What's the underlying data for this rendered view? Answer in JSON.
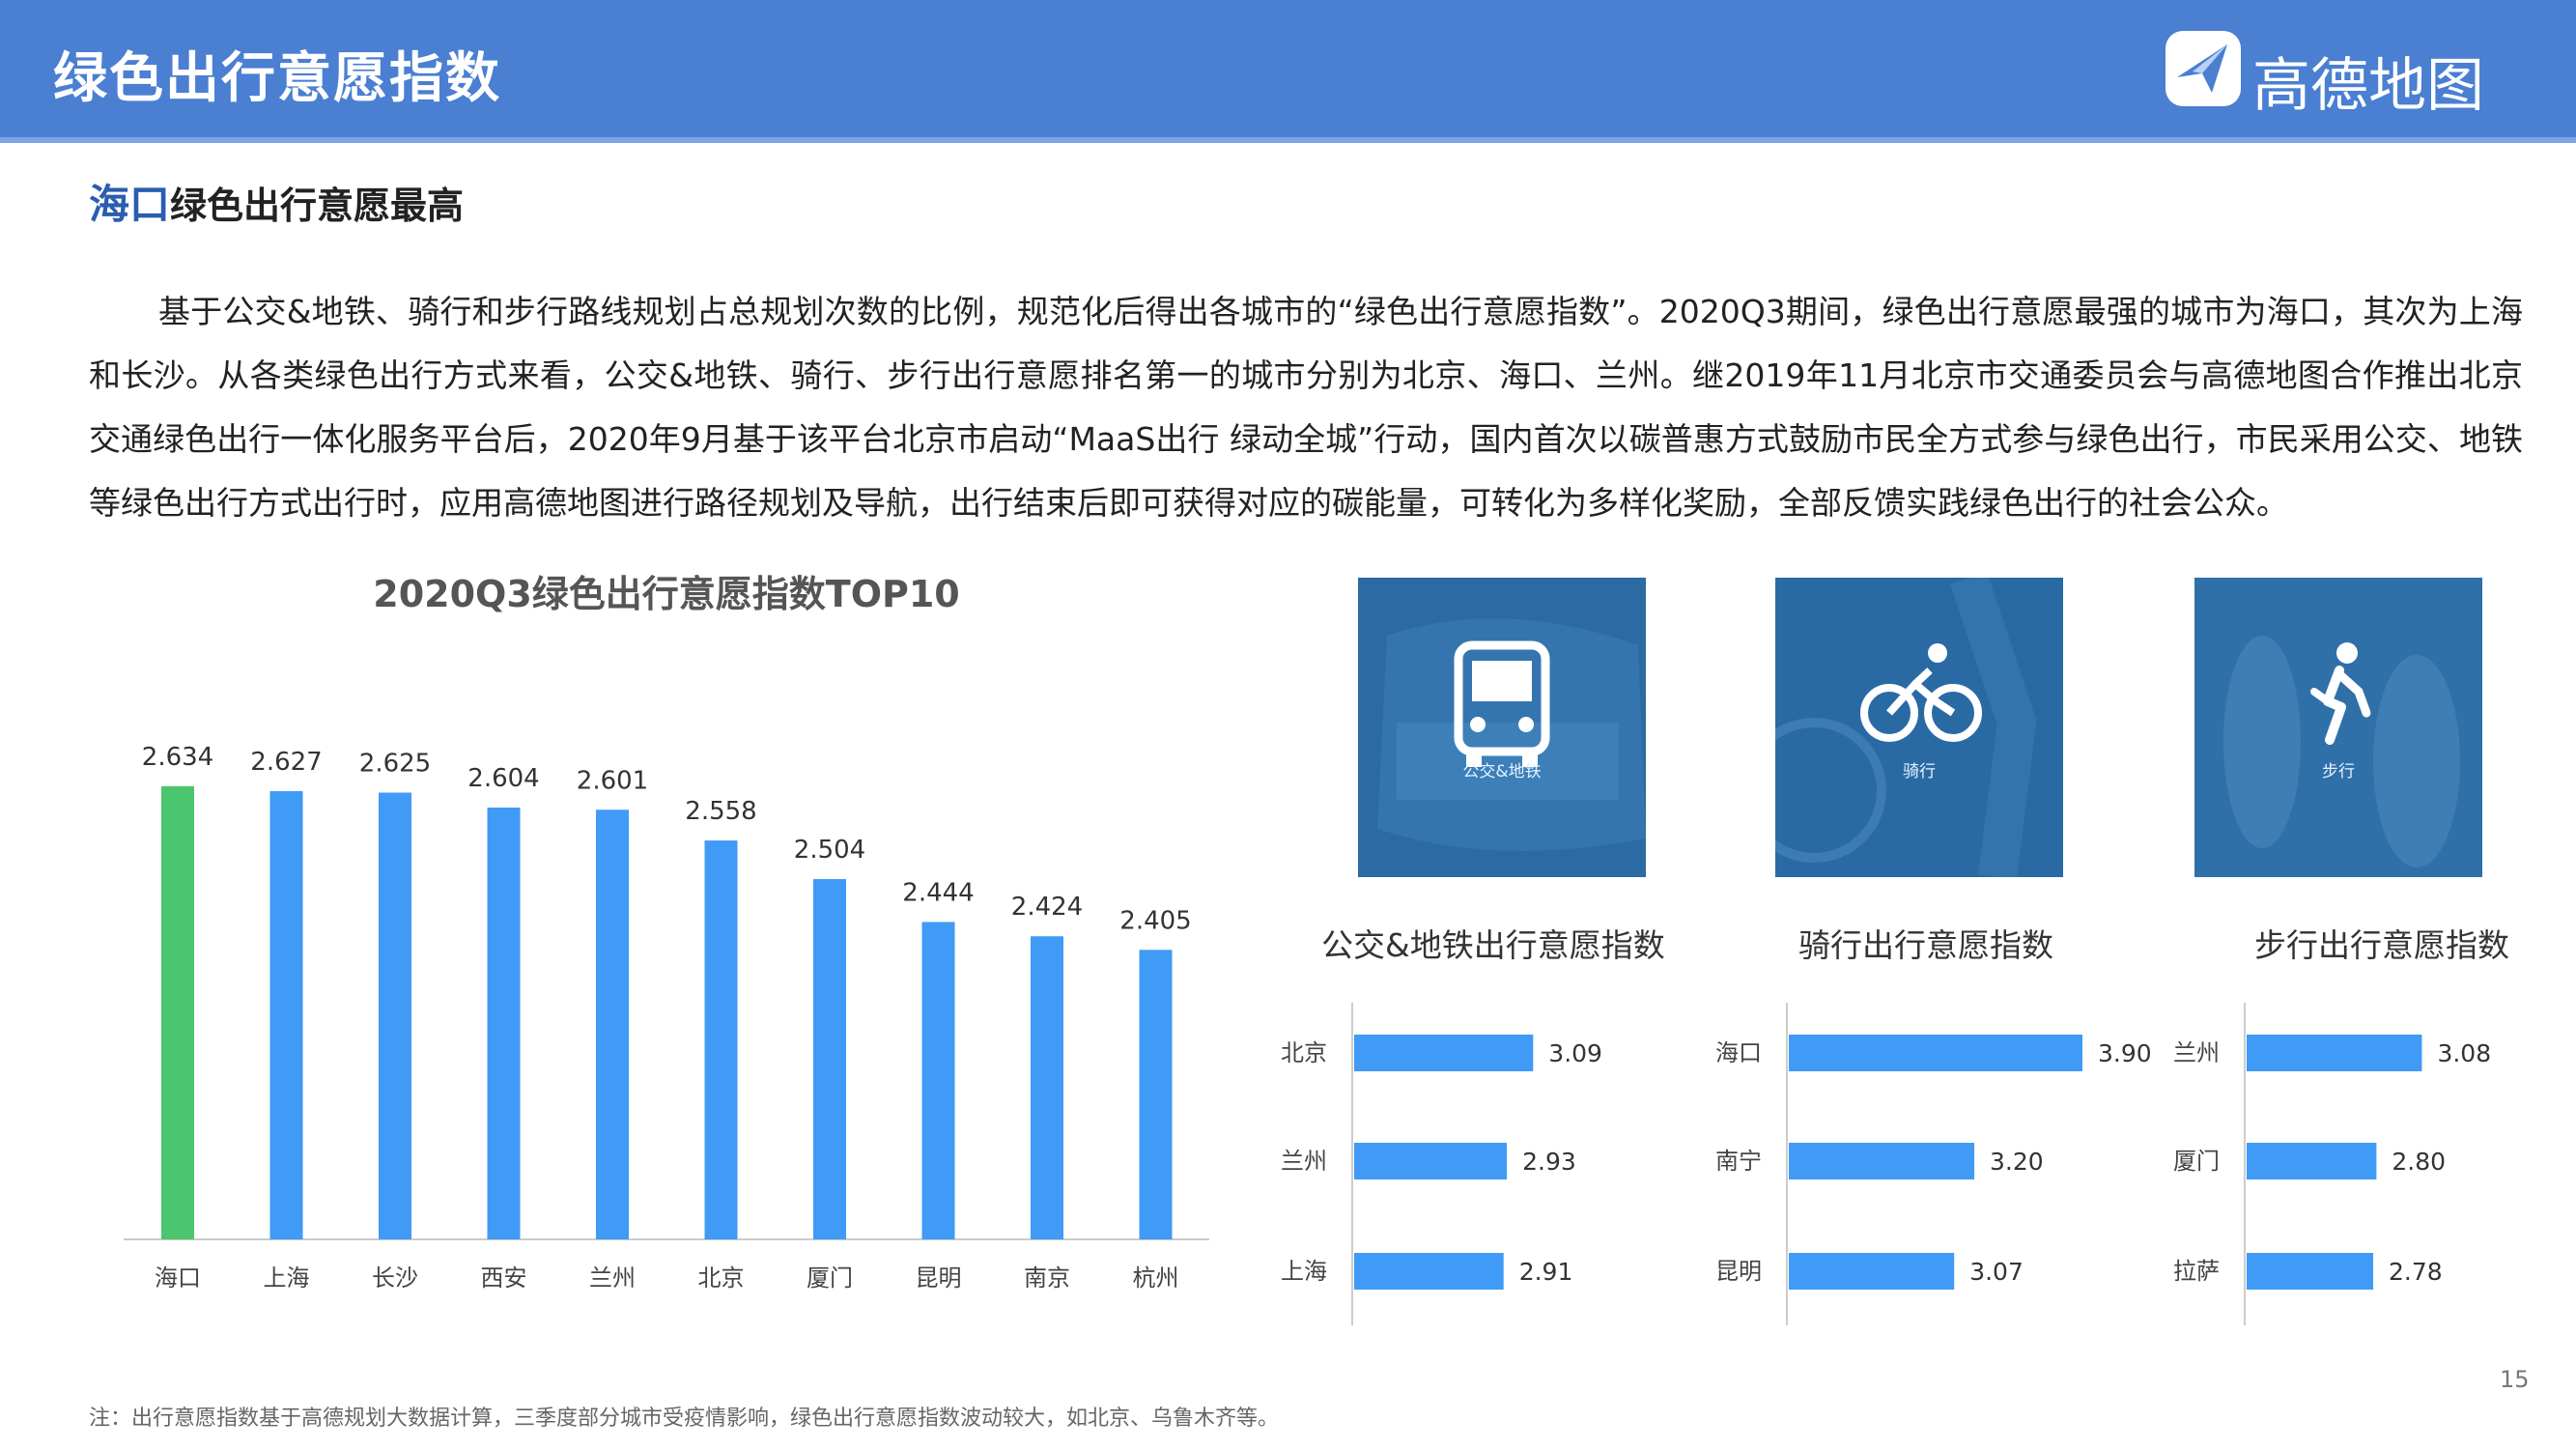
{
  "header": {
    "title": "绿色出行意愿指数",
    "logo_text": "高德地图"
  },
  "subtitle": {
    "highlight": "海口",
    "rest": "绿色出行意愿最高"
  },
  "body_text": "基于公交&地铁、骑行和步行路线规划占总规划次数的比例，规范化后得出各城市的“绿色出行意愿指数”。2020Q3期间，绿色出行意愿最强的城市为海口，其次为上海和长沙。从各类绿色出行方式来看，公交&地铁、骑行、步行出行意愿排名第一的城市分别为北京、海口、兰州。继2019年11月北京市交通委员会与高德地图合作推出北京交通绿色出行一体化服务平台后，2020年9月基于该平台北京市启动“MaaS出行 绿动全城”行动，国内首次以碳普惠方式鼓励市民全方式参与绿色出行，市民采用公交、地铁等绿色出行方式出行时，应用高德地图进行路径规划及导航，出行结束后即可获得对应的碳能量，可转化为多样化奖励，全部反馈实践绿色出行的社会公众。",
  "photos": [
    {
      "label": "公交&地铁",
      "icon": "bus-icon"
    },
    {
      "label": "骑行",
      "icon": "bicycle-icon"
    },
    {
      "label": "步行",
      "icon": "walking-icon"
    }
  ],
  "colors": {
    "header": "#4a7fd2",
    "bar": "#3f9bf5",
    "highlight_bar": "#4cc56f",
    "photo": "#2f6ea8"
  },
  "chart_data": [
    {
      "type": "bar",
      "title": "2020Q3绿色出行意愿指数TOP10",
      "categories": [
        "海口",
        "上海",
        "长沙",
        "西安",
        "兰州",
        "北京",
        "厦门",
        "昆明",
        "南京",
        "杭州"
      ],
      "values": [
        2.634,
        2.627,
        2.625,
        2.604,
        2.601,
        2.558,
        2.504,
        2.444,
        2.424,
        2.405
      ],
      "value_labels": [
        "2.634",
        "2.627",
        "2.625",
        "2.604",
        "2.601",
        "2.558",
        "2.504",
        "2.444",
        "2.424",
        "2.405"
      ],
      "highlight_index": 0
    },
    {
      "type": "bar",
      "orientation": "horizontal",
      "title": "公交&地铁出行意愿指数",
      "categories": [
        "北京",
        "兰州",
        "上海"
      ],
      "values": [
        3.09,
        2.93,
        2.91
      ],
      "value_labels": [
        "3.09",
        "2.93",
        "2.91"
      ]
    },
    {
      "type": "bar",
      "orientation": "horizontal",
      "title": "骑行出行意愿指数",
      "categories": [
        "海口",
        "南宁",
        "昆明"
      ],
      "values": [
        3.9,
        3.2,
        3.07
      ],
      "value_labels": [
        "3.90",
        "3.20",
        "3.07"
      ]
    },
    {
      "type": "bar",
      "orientation": "horizontal",
      "title": "步行出行意愿指数",
      "categories": [
        "兰州",
        "厦门",
        "拉萨"
      ],
      "values": [
        3.08,
        2.8,
        2.78
      ],
      "value_labels": [
        "3.08",
        "2.80",
        "2.78"
      ]
    }
  ],
  "page_number": "15",
  "footnote": "注：出行意愿指数基于高德规划大数据计算，三季度部分城市受疫情影响，绿色出行意愿指数波动较大，如北京、乌鲁木齐等。"
}
